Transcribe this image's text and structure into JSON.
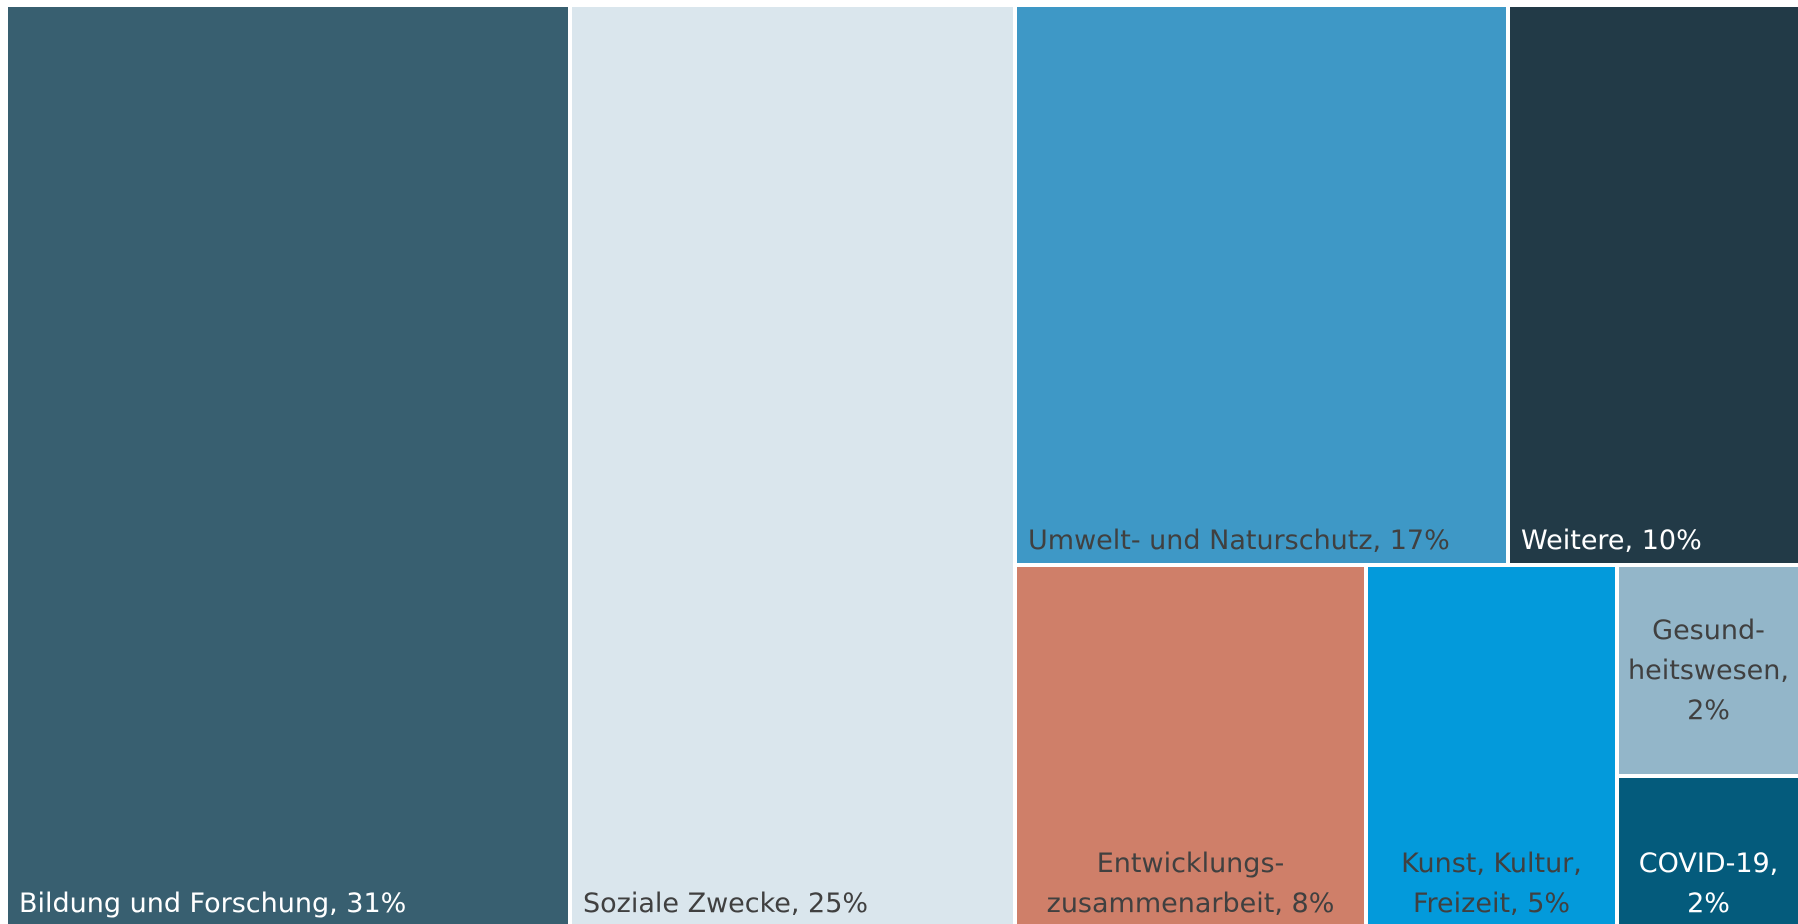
{
  "chart_data": {
    "type": "treemap",
    "title": "",
    "colors": {
      "Bildung und Forschung": "#385F70",
      "Soziale Zwecke": "#DAE6ED",
      "Umwelt- und Naturschutz": "#3E98C6",
      "Weitere": "#223A47",
      "Entwicklungszusammenarbeit": "#CF7F69",
      "Kunst, Kultur, Freizeit": "#039ADB",
      "Gesundheitswesen": "#93B6C9",
      "COVID-19": "#045B7C"
    },
    "items": [
      {
        "name": "Bildung und Forschung",
        "value": 31,
        "lines": [
          "Bildung und Forschung, 31%"
        ],
        "text_color": "#FFFFFF"
      },
      {
        "name": "Soziale Zwecke",
        "value": 25,
        "lines": [
          "Soziale Zwecke, 25%"
        ],
        "text_color": "#404040"
      },
      {
        "name": "Umwelt- und Naturschutz",
        "value": 17,
        "lines": [
          "Umwelt- und Naturschutz, 17%"
        ],
        "text_color": "#404040"
      },
      {
        "name": "Weitere",
        "value": 10,
        "lines": [
          "Weitere, 10%"
        ],
        "text_color": "#FFFFFF"
      },
      {
        "name": "Entwicklungszusammenarbeit",
        "value": 8,
        "lines": [
          "Entwicklungs-",
          "zusammenarbeit, 8%"
        ],
        "text_color": "#404040"
      },
      {
        "name": "Kunst, Kultur, Freizeit",
        "value": 5,
        "lines": [
          "Kunst, Kultur,",
          "Freizeit, 5%"
        ],
        "text_color": "#404040"
      },
      {
        "name": "Gesundheitswesen",
        "value": 2,
        "lines": [
          "Gesund-",
          "heitswesen,",
          "2%"
        ],
        "text_color": "#404040"
      },
      {
        "name": "COVID-19",
        "value": 2,
        "lines": [
          "COVID-19,",
          "2%"
        ],
        "text_color": "#FFFFFF"
      }
    ]
  }
}
